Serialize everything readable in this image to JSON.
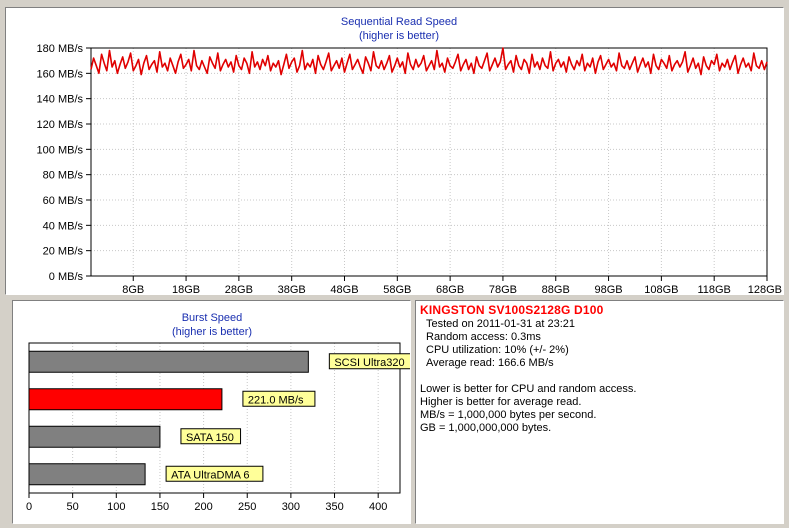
{
  "chart_data": [
    {
      "type": "line",
      "title": "Sequential Read Speed",
      "subtitle": "(higher is better)",
      "xlabel": "",
      "ylabel": "",
      "xlim": [
        0,
        128
      ],
      "ylim": [
        0,
        180
      ],
      "y_ticks": [
        0,
        20,
        40,
        60,
        80,
        100,
        120,
        140,
        160,
        180
      ],
      "y_tick_labels": [
        "0 MB/s",
        "20 MB/s",
        "40 MB/s",
        "60 MB/s",
        "80 MB/s",
        "100 MB/s",
        "120 MB/s",
        "140 MB/s",
        "160 MB/s",
        "180 MB/s"
      ],
      "x_ticks": [
        8,
        18,
        28,
        38,
        48,
        58,
        68,
        78,
        88,
        98,
        108,
        118,
        128
      ],
      "x_tick_labels": [
        "8GB",
        "18GB",
        "28GB",
        "38GB",
        "48GB",
        "58GB",
        "68GB",
        "78GB",
        "88GB",
        "98GB",
        "108GB",
        "118GB",
        "128GB"
      ],
      "grid": true,
      "series": [
        {
          "color": "#e00000",
          "x": [
            0,
            0.5,
            1,
            1.5,
            2,
            2.5,
            3,
            3.5,
            4,
            4.5,
            5,
            5.5,
            6,
            6.5,
            7,
            7.5,
            8,
            8.5,
            9,
            9.5,
            10,
            10.5,
            11,
            11.5,
            12,
            12.5,
            13,
            13.5,
            14,
            14.5,
            15,
            15.5,
            16,
            16.5,
            17,
            17.5,
            18,
            18.5,
            19,
            19.5,
            20,
            20.5,
            21,
            21.5,
            22,
            22.5,
            23,
            23.5,
            24,
            24.5,
            25,
            25.5,
            26,
            26.5,
            27,
            27.5,
            28,
            28.5,
            29,
            29.5,
            30,
            30.5,
            31,
            31.5,
            32,
            32.5,
            33,
            33.5,
            34,
            34.5,
            35,
            35.5,
            36,
            36.5,
            37,
            37.5,
            38,
            38.5,
            39,
            39.5,
            40,
            40.5,
            41,
            41.5,
            42,
            42.5,
            43,
            43.5,
            44,
            44.5,
            45,
            45.5,
            46,
            46.5,
            47,
            47.5,
            48,
            48.5,
            49,
            49.5,
            50,
            50.5,
            51,
            51.5,
            52,
            52.5,
            53,
            53.5,
            54,
            54.5,
            55,
            55.5,
            56,
            56.5,
            57,
            57.5,
            58,
            58.5,
            59,
            59.5,
            60,
            60.5,
            61,
            61.5,
            62,
            62.5,
            63,
            63.5,
            64,
            64.5,
            65,
            65.5,
            66,
            66.5,
            67,
            67.5,
            68,
            68.5,
            69,
            69.5,
            70,
            70.5,
            71,
            71.5,
            72,
            72.5,
            73,
            73.5,
            74,
            74.5,
            75,
            75.5,
            76,
            76.5,
            77,
            77.5,
            78,
            78.5,
            79,
            79.5,
            80,
            80.5,
            81,
            81.5,
            82,
            82.5,
            83,
            83.5,
            84,
            84.5,
            85,
            85.5,
            86,
            86.5,
            87,
            87.5,
            88,
            88.5,
            89,
            89.5,
            90,
            90.5,
            91,
            91.5,
            92,
            92.5,
            93,
            93.5,
            94,
            94.5,
            95,
            95.5,
            96,
            96.5,
            97,
            97.5,
            98,
            98.5,
            99,
            99.5,
            100,
            100.5,
            101,
            101.5,
            102,
            102.5,
            103,
            103.5,
            104,
            104.5,
            105,
            105.5,
            106,
            106.5,
            107,
            107.5,
            108,
            108.5,
            109,
            109.5,
            110,
            110.5,
            111,
            111.5,
            112,
            112.5,
            113,
            113.5,
            114,
            114.5,
            115,
            115.5,
            116,
            116.5,
            117,
            117.5,
            118,
            118.5,
            119,
            119.5,
            120,
            120.5,
            121,
            121.5,
            122,
            122.5,
            123,
            123.5,
            124,
            124.5,
            125,
            125.5,
            126,
            126.5,
            127,
            127.5,
            128
          ],
          "y": [
            163,
            172,
            166,
            160,
            175,
            168,
            162,
            178,
            165,
            170,
            160,
            167,
            173,
            164,
            169,
            176,
            162,
            166,
            171,
            159,
            168,
            174,
            163,
            167,
            170,
            161,
            177,
            165,
            168,
            162,
            172,
            166,
            160,
            169,
            175,
            164,
            167,
            171,
            162,
            178,
            166,
            163,
            170,
            165,
            160,
            173,
            168,
            164,
            176,
            162,
            167,
            171,
            165,
            169,
            161,
            174,
            166,
            163,
            172,
            168,
            160,
            177,
            165,
            169,
            163,
            171,
            166,
            174,
            162,
            168,
            165,
            170,
            159,
            167,
            175,
            164,
            169,
            172,
            161,
            166,
            178,
            163,
            168,
            165,
            171,
            160,
            174,
            167,
            163,
            169,
            176,
            162,
            166,
            170,
            164,
            172,
            161,
            168,
            175,
            163,
            167,
            171,
            165,
            160,
            173,
            168,
            162,
            177,
            166,
            164,
            170,
            163,
            168,
            174,
            161,
            166,
            172,
            165,
            169,
            160,
            176,
            167,
            163,
            171,
            165,
            168,
            174,
            162,
            166,
            170,
            163,
            178,
            165,
            168,
            161,
            172,
            166,
            164,
            169,
            175,
            162,
            167,
            171,
            163,
            168,
            160,
            173,
            166,
            164,
            170,
            176,
            162,
            167,
            172,
            165,
            169,
            180,
            163,
            167,
            170,
            161,
            174,
            166,
            163,
            171,
            168,
            160,
            175,
            165,
            169,
            163,
            172,
            166,
            164,
            177,
            162,
            168,
            171,
            165,
            169,
            161,
            173,
            167,
            163,
            170,
            166,
            175,
            162,
            168,
            165,
            172,
            160,
            169,
            174,
            163,
            167,
            171,
            165,
            168,
            162,
            176,
            166,
            164,
            170,
            163,
            168,
            173,
            161,
            167,
            172,
            165,
            169,
            160,
            175,
            166,
            163,
            171,
            168,
            164,
            174,
            162,
            167,
            170,
            165,
            169,
            177,
            161,
            166,
            172,
            164,
            168,
            159,
            173,
            166,
            163,
            170,
            167,
            175,
            162,
            168,
            165,
            171,
            163,
            169,
            174,
            160,
            167,
            172,
            165,
            168,
            162,
            176,
            166,
            164,
            170,
            163,
            169
          ]
        }
      ]
    },
    {
      "type": "bar",
      "orientation": "horizontal",
      "title": "Burst Speed",
      "subtitle": "(higher is better)",
      "xlabel": "",
      "ylabel": "",
      "xlim": [
        0,
        425
      ],
      "x_ticks": [
        0,
        50,
        100,
        150,
        200,
        250,
        300,
        350,
        400
      ],
      "grid": true,
      "categories": [
        "SCSI Ultra320",
        "221.0 MB/s",
        "SATA 150",
        "ATA UltraDMA 6"
      ],
      "values": [
        320,
        221,
        150,
        133
      ],
      "colors": [
        "#808080",
        "#ff0000",
        "#808080",
        "#808080"
      ],
      "label_bg": "#ffff99"
    }
  ],
  "info": {
    "device": "KINGSTON SV100S2128G D100",
    "lines": [
      "Tested on 2011-01-31 at 23:21",
      "Random access: 0.3ms",
      "CPU utilization: 10% (+/- 2%)",
      "Average read: 166.6 MB/s"
    ],
    "notes": [
      "Lower is better for CPU and random access.",
      "Higher is better for average read.",
      "MB/s = 1,000,000 bytes per second.",
      "GB = 1,000,000,000 bytes."
    ]
  }
}
